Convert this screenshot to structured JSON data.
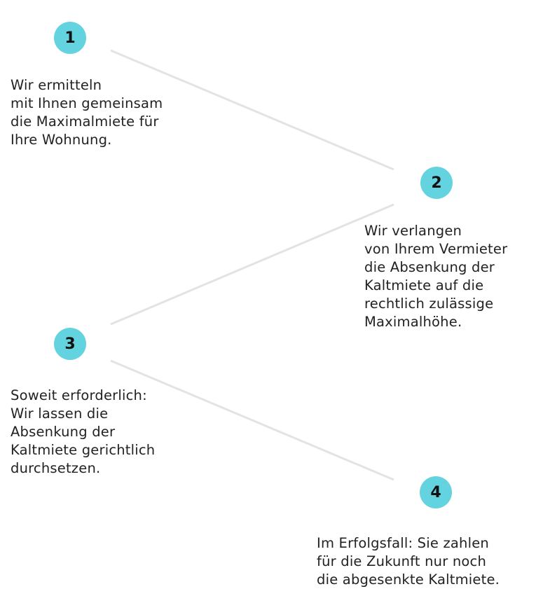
{
  "accent_color": "#63d3df",
  "line_color": "#e3e3e3",
  "steps": [
    {
      "number": "1",
      "text": "Wir ermitteln\nmit Ihnen gemeinsam\ndie Maximalmiete für\nIhre Wohnung."
    },
    {
      "number": "2",
      "text": "Wir verlangen\nvon Ihrem Vermieter\ndie Absenkung der\nKaltmiete auf die\nrechtlich zulässige\nMaximalhöhe."
    },
    {
      "number": "3",
      "text": "Soweit erforderlich:\nWir lassen die\nAbsenkung der\nKaltmiete gerichtlich\ndurchsetzen."
    },
    {
      "number": "4",
      "text": "Im Erfolgsfall: Sie zahlen\nfür die Zukunft nur noch\ndie abgesenkte Kaltmiete."
    }
  ]
}
